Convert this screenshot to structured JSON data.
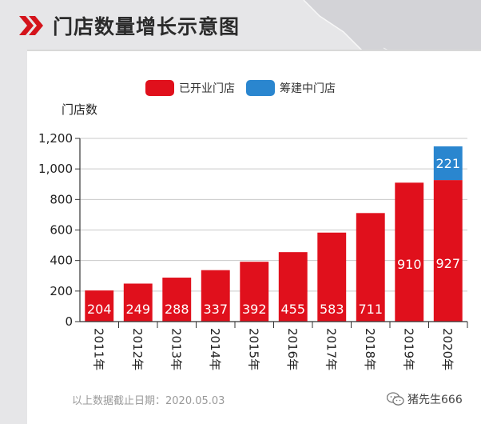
{
  "header": {
    "title": "门店数量增长示意图"
  },
  "legend": {
    "open_label": "已开业门店",
    "planned_label": "筹建中门店"
  },
  "colors": {
    "open": "#e0101c",
    "planned": "#2a86cf",
    "accent": "#d4141c"
  },
  "footnote": "以上数据截止日期：2020.05.03",
  "watermark": "猪先生666",
  "chart_data": {
    "type": "bar",
    "stacked": true,
    "ylabel": "门店数",
    "xlabel": "",
    "title": "",
    "ylim": [
      0,
      1200
    ],
    "yticks": [
      0,
      200,
      400,
      600,
      800,
      1000,
      1200
    ],
    "ytick_labels": [
      "0",
      "200",
      "400",
      "600",
      "800",
      "1,000",
      "1,200"
    ],
    "categories": [
      "2011年",
      "2012年",
      "2013年",
      "2014年",
      "2015年",
      "2016年",
      "2017年",
      "2018年",
      "2019年",
      "2020年"
    ],
    "series": [
      {
        "name": "已开业门店",
        "values": [
          204,
          249,
          288,
          337,
          392,
          455,
          583,
          711,
          910,
          927
        ]
      },
      {
        "name": "筹建中门店",
        "values": [
          0,
          0,
          0,
          0,
          0,
          0,
          0,
          0,
          0,
          221
        ]
      }
    ]
  }
}
